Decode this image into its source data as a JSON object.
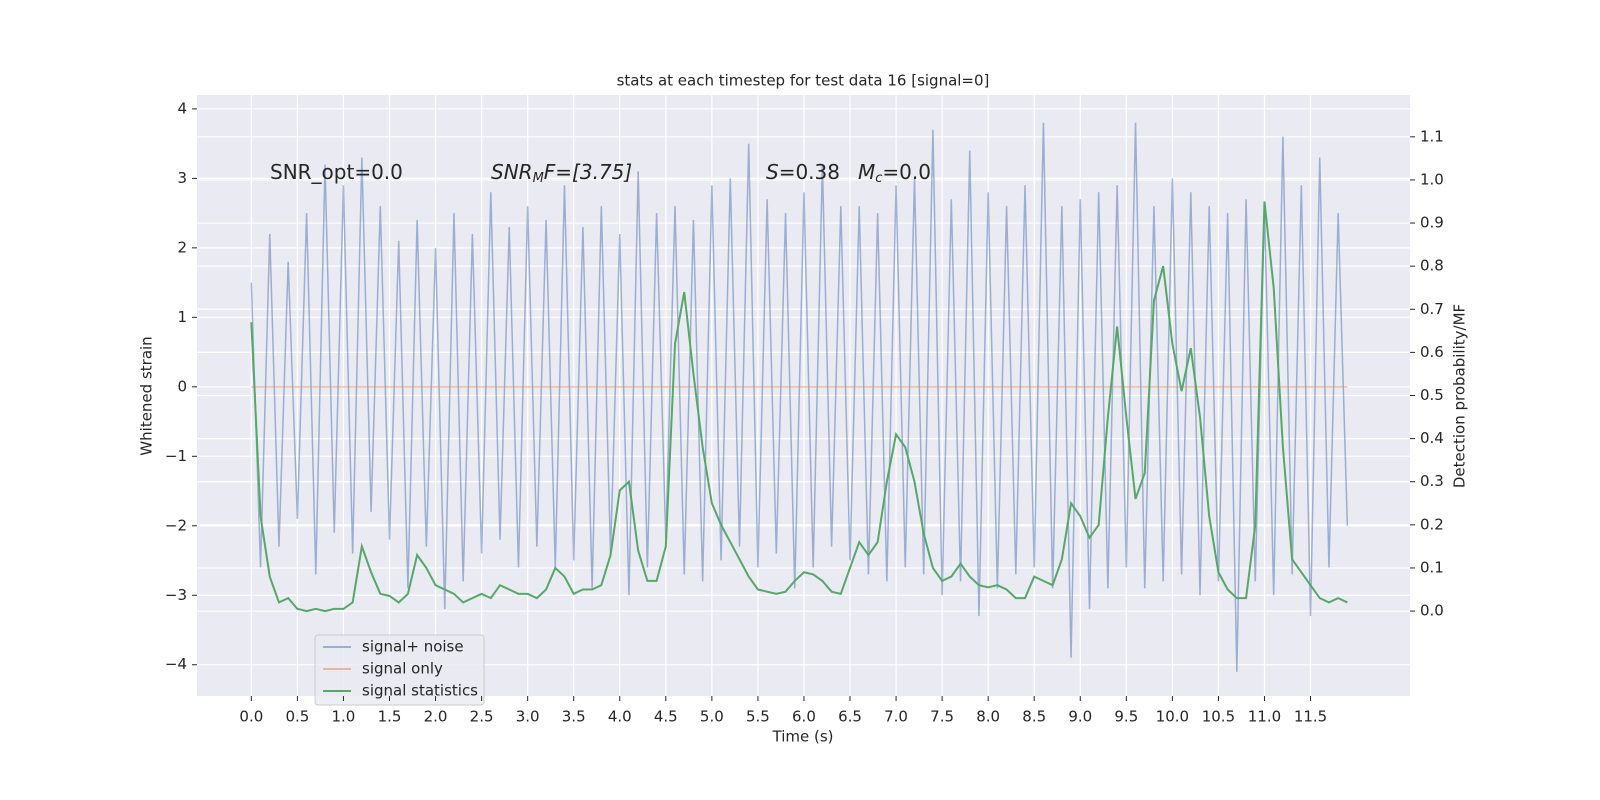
{
  "chart_data": {
    "type": "line",
    "title": "stats at each timestep for test data 16 [signal=0]",
    "xlabel": "Time (s)",
    "ylabel": "Whitened strain",
    "y2label": "Detection probability/MF",
    "annotations": [
      [
        "SNR_opt=0.0"
      ],
      [
        "SNR",
        "M",
        "F=[3.75]"
      ],
      [
        "S",
        "=0.38"
      ],
      [
        "M",
        "c",
        "=0.0"
      ]
    ],
    "grid": true,
    "legend": "lower left",
    "xlim": [
      -0.59,
      12.58
    ],
    "ylim": [
      -4.45,
      4.2
    ],
    "y2lim": [
      -0.197,
      1.197
    ],
    "xticks": [
      {
        "value": 0,
        "label": "0.0"
      },
      {
        "value": 0.5,
        "label": "0.5"
      },
      {
        "value": 1,
        "label": "1.0"
      },
      {
        "value": 1.5,
        "label": "1.5"
      },
      {
        "value": 2,
        "label": "2.0"
      },
      {
        "value": 2.5,
        "label": "2.5"
      },
      {
        "value": 3,
        "label": "3.0"
      },
      {
        "value": 3.5,
        "label": "3.5"
      },
      {
        "value": 4,
        "label": "4.0"
      },
      {
        "value": 4.5,
        "label": "4.5"
      },
      {
        "value": 5,
        "label": "5.0"
      },
      {
        "value": 5.5,
        "label": "5.5"
      },
      {
        "value": 6,
        "label": "6.0"
      },
      {
        "value": 6.5,
        "label": "6.5"
      },
      {
        "value": 7,
        "label": "7.0"
      },
      {
        "value": 7.5,
        "label": "7.5"
      },
      {
        "value": 8,
        "label": "8.0"
      },
      {
        "value": 8.5,
        "label": "8.5"
      },
      {
        "value": 9,
        "label": "9.0"
      },
      {
        "value": 9.5,
        "label": "9.5"
      },
      {
        "value": 10,
        "label": "10.0"
      },
      {
        "value": 10.5,
        "label": "10.5"
      },
      {
        "value": 11,
        "label": "11.0"
      },
      {
        "value": 11.5,
        "label": "11.5"
      }
    ],
    "yticks": [
      {
        "value": -4,
        "label": "−4"
      },
      {
        "value": -3,
        "label": "−3"
      },
      {
        "value": -2,
        "label": "−2"
      },
      {
        "value": -1,
        "label": "−1"
      },
      0,
      1,
      2,
      3,
      4
    ],
    "y2ticks": [
      {
        "value": 0,
        "label": "0.0"
      },
      {
        "value": 0.1,
        "label": "0.1"
      },
      {
        "value": 0.2,
        "label": "0.2"
      },
      {
        "value": 0.3,
        "label": "0.3"
      },
      {
        "value": 0.4,
        "label": "0.4"
      },
      {
        "value": 0.5,
        "label": "0.5"
      },
      {
        "value": 0.6,
        "label": "0.6"
      },
      {
        "value": 0.7,
        "label": "0.7"
      },
      {
        "value": 0.8,
        "label": "0.8"
      },
      {
        "value": 0.9,
        "label": "0.9"
      },
      {
        "value": 1,
        "label": "1.0"
      },
      {
        "value": 1.1,
        "label": "1.1"
      }
    ],
    "x": [
      0,
      0.1,
      0.2,
      0.3,
      0.4,
      0.5,
      0.6,
      0.7,
      0.8,
      0.9,
      1,
      1.1,
      1.2,
      1.3,
      1.4,
      1.5,
      1.6,
      1.7,
      1.8,
      1.9,
      2,
      2.1,
      2.2,
      2.3,
      2.4,
      2.5,
      2.6,
      2.7,
      2.8,
      2.9,
      3,
      3.1,
      3.2,
      3.3,
      3.4,
      3.5,
      3.6,
      3.7,
      3.8,
      3.9,
      4,
      4.1,
      4.2,
      4.3,
      4.4,
      4.5,
      4.6,
      4.7,
      4.8,
      4.9,
      5,
      5.1,
      5.2,
      5.3,
      5.4,
      5.5,
      5.6,
      5.7,
      5.8,
      5.9,
      6,
      6.1,
      6.2,
      6.3,
      6.4,
      6.5,
      6.6,
      6.7,
      6.8,
      6.9,
      7,
      7.1,
      7.2,
      7.3,
      7.4,
      7.5,
      7.6,
      7.7,
      7.8,
      7.9,
      8,
      8.1,
      8.2,
      8.3,
      8.4,
      8.5,
      8.6,
      8.7,
      8.8,
      8.9,
      9,
      9.1,
      9.2,
      9.3,
      9.4,
      9.5,
      9.6,
      9.7,
      9.8,
      9.9,
      10,
      10.1,
      10.2,
      10.3,
      10.4,
      10.5,
      10.6,
      10.7,
      10.8,
      10.9,
      11,
      11.1,
      11.2,
      11.3,
      11.4,
      11.5,
      11.6,
      11.7,
      11.8,
      11.9
    ],
    "series": [
      {
        "name": "signal+ noise",
        "color": "#4c72b0",
        "opacity": 0.5,
        "values": [
          1.5,
          -2.6,
          2.2,
          -2.3,
          1.8,
          -1.9,
          2.5,
          -2.7,
          3.2,
          -2.1,
          2.9,
          -2.4,
          3.3,
          -1.8,
          2.6,
          -2.2,
          2.1,
          -2.9,
          2.4,
          -2.3,
          2.0,
          -3.2,
          2.5,
          -2.8,
          2.2,
          -2.4,
          2.8,
          -2.2,
          2.3,
          -2.6,
          2.6,
          -2.3,
          2.4,
          -2.6,
          2.9,
          -2.5,
          2.3,
          -2.9,
          2.6,
          -2.4,
          2.2,
          -3.0,
          3.1,
          -2.6,
          2.5,
          -2.2,
          2.6,
          -2.7,
          2.4,
          -2.8,
          2.9,
          -2.5,
          3.0,
          -2.3,
          3.5,
          -2.6,
          2.7,
          -2.4,
          2.5,
          -2.9,
          2.8,
          -2.6,
          3.2,
          -2.3,
          2.6,
          -2.5,
          2.6,
          -2.7,
          2.5,
          -2.8,
          2.9,
          -2.6,
          3.0,
          -2.7,
          3.7,
          -3.0,
          2.7,
          -2.8,
          3.4,
          -3.3,
          2.8,
          -2.9,
          2.6,
          -2.7,
          2.9,
          -2.6,
          3.8,
          -2.9,
          2.6,
          -3.9,
          2.7,
          -3.2,
          2.8,
          -2.9,
          2.9,
          -2.6,
          3.8,
          -2.9,
          2.6,
          -2.8,
          3.0,
          -2.7,
          2.8,
          -3.0,
          2.6,
          -2.8,
          2.5,
          -4.1,
          2.7,
          -2.8,
          2.6,
          -3.0,
          3.6,
          -2.7,
          2.9,
          -3.3,
          3.3,
          -2.6,
          2.5,
          -2.0
        ]
      },
      {
        "name": "signal only",
        "color": "#dd8452",
        "opacity": 0.5,
        "values": [
          0,
          0,
          0,
          0,
          0,
          0,
          0,
          0,
          0,
          0,
          0,
          0,
          0,
          0,
          0,
          0,
          0,
          0,
          0,
          0,
          0,
          0,
          0,
          0,
          0,
          0,
          0,
          0,
          0,
          0,
          0,
          0,
          0,
          0,
          0,
          0,
          0,
          0,
          0,
          0,
          0,
          0,
          0,
          0,
          0,
          0,
          0,
          0,
          0,
          0,
          0,
          0,
          0,
          0,
          0,
          0,
          0,
          0,
          0,
          0,
          0,
          0,
          0,
          0,
          0,
          0,
          0,
          0,
          0,
          0,
          0,
          0,
          0,
          0,
          0,
          0,
          0,
          0,
          0,
          0,
          0,
          0,
          0,
          0,
          0,
          0,
          0,
          0,
          0,
          0,
          0,
          0,
          0,
          0,
          0,
          0,
          0,
          0,
          0,
          0,
          0,
          0,
          0,
          0,
          0,
          0,
          0,
          0,
          0,
          0,
          0,
          0,
          0,
          0,
          0,
          0,
          0,
          0,
          0,
          0
        ]
      },
      {
        "name": "signal statistics",
        "color": "#55a868",
        "opacity": 1,
        "axis": "y2",
        "values": [
          0.67,
          0.22,
          0.08,
          0.02,
          0.03,
          0.005,
          0,
          0.005,
          0,
          0.005,
          0.005,
          0.02,
          0.15,
          0.09,
          0.04,
          0.035,
          0.02,
          0.04,
          0.13,
          0.1,
          0.06,
          0.05,
          0.04,
          0.02,
          0.03,
          0.04,
          0.03,
          0.06,
          0.05,
          0.04,
          0.04,
          0.03,
          0.05,
          0.1,
          0.08,
          0.04,
          0.05,
          0.05,
          0.06,
          0.13,
          0.28,
          0.3,
          0.14,
          0.07,
          0.07,
          0.15,
          0.62,
          0.74,
          0.55,
          0.38,
          0.25,
          0.2,
          0.16,
          0.12,
          0.08,
          0.05,
          0.045,
          0.04,
          0.045,
          0.07,
          0.09,
          0.085,
          0.07,
          0.045,
          0.04,
          0.1,
          0.16,
          0.13,
          0.16,
          0.3,
          0.41,
          0.38,
          0.3,
          0.18,
          0.1,
          0.07,
          0.08,
          0.11,
          0.08,
          0.06,
          0.055,
          0.06,
          0.05,
          0.03,
          0.03,
          0.08,
          0.07,
          0.06,
          0.12,
          0.25,
          0.22,
          0.17,
          0.2,
          0.45,
          0.66,
          0.45,
          0.26,
          0.32,
          0.72,
          0.8,
          0.62,
          0.51,
          0.61,
          0.45,
          0.22,
          0.09,
          0.05,
          0.03,
          0.03,
          0.2,
          0.95,
          0.75,
          0.38,
          0.12,
          0.09,
          0.06,
          0.03,
          0.02,
          0.03,
          0.02
        ]
      }
    ]
  }
}
